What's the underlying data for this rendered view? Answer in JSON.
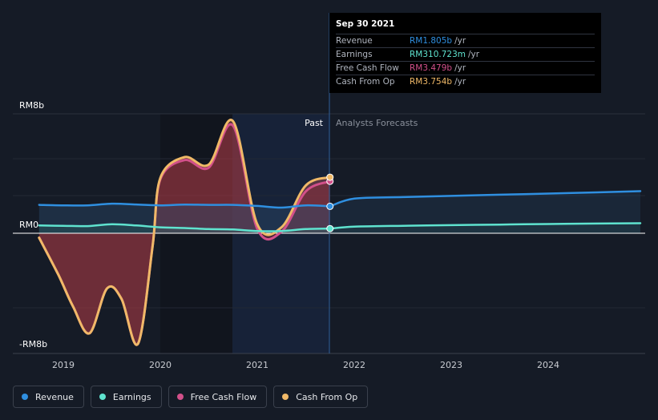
{
  "tooltip": {
    "date": "Sep 30 2021",
    "rows": [
      {
        "label": "Revenue",
        "value": "RM1.805b",
        "unit": "/yr",
        "color": "#2f8fe0"
      },
      {
        "label": "Earnings",
        "value": "RM310.723m",
        "unit": "/yr",
        "color": "#5fe3cf"
      },
      {
        "label": "Free Cash Flow",
        "value": "RM3.479b",
        "unit": "/yr",
        "color": "#d2508a"
      },
      {
        "label": "Cash From Op",
        "value": "RM3.754b",
        "unit": "/yr",
        "color": "#f0b968"
      }
    ]
  },
  "legend": [
    {
      "label": "Revenue",
      "color": "#2f8fe0"
    },
    {
      "label": "Earnings",
      "color": "#5fe3cf"
    },
    {
      "label": "Free Cash Flow",
      "color": "#d2508a"
    },
    {
      "label": "Cash From Op",
      "color": "#f0b968"
    }
  ],
  "chart_data": {
    "type": "line",
    "ylim": [
      -8,
      8
    ],
    "xlim": [
      2018.75,
      2024.95
    ],
    "y_tick_labels": [
      {
        "value": 8,
        "label": "RM8b"
      },
      {
        "value": 0,
        "label": "RM0"
      },
      {
        "value": -8,
        "label": "-RM8b"
      }
    ],
    "x_tick_labels": [
      {
        "value": 2019,
        "label": "2019"
      },
      {
        "value": 2020,
        "label": "2020"
      },
      {
        "value": 2021,
        "label": "2021"
      },
      {
        "value": 2022,
        "label": "2022"
      },
      {
        "value": 2023,
        "label": "2023"
      },
      {
        "value": 2024,
        "label": "2024"
      }
    ],
    "past_label": "Past",
    "forecast_label": "Analysts Forecasts",
    "divider_x": 2021.75,
    "series": [
      {
        "name": "Revenue",
        "color": "#2f8fe0",
        "points": [
          [
            2018.75,
            1.9
          ],
          [
            2019.0,
            1.87
          ],
          [
            2019.25,
            1.87
          ],
          [
            2019.5,
            1.98
          ],
          [
            2019.75,
            1.93
          ],
          [
            2020.0,
            1.87
          ],
          [
            2020.25,
            1.92
          ],
          [
            2020.5,
            1.9
          ],
          [
            2020.75,
            1.9
          ],
          [
            2021.0,
            1.83
          ],
          [
            2021.25,
            1.72
          ],
          [
            2021.5,
            1.87
          ],
          [
            2021.75,
            1.805
          ]
        ],
        "forecast": [
          [
            2021.75,
            1.805
          ],
          [
            2022.0,
            2.32
          ],
          [
            2022.5,
            2.42
          ],
          [
            2023.0,
            2.5
          ],
          [
            2023.5,
            2.58
          ],
          [
            2024.0,
            2.66
          ],
          [
            2024.5,
            2.74
          ],
          [
            2024.95,
            2.82
          ]
        ]
      },
      {
        "name": "Earnings",
        "color": "#5fe3cf",
        "points": [
          [
            2018.75,
            0.52
          ],
          [
            2019.0,
            0.5
          ],
          [
            2019.25,
            0.48
          ],
          [
            2019.5,
            0.6
          ],
          [
            2019.75,
            0.52
          ],
          [
            2020.0,
            0.4
          ],
          [
            2020.25,
            0.35
          ],
          [
            2020.5,
            0.28
          ],
          [
            2020.75,
            0.25
          ],
          [
            2021.0,
            0.15
          ],
          [
            2021.25,
            0.15
          ],
          [
            2021.5,
            0.28
          ],
          [
            2021.75,
            0.3107
          ]
        ],
        "forecast": [
          [
            2021.75,
            0.3107
          ],
          [
            2022.0,
            0.44
          ],
          [
            2022.5,
            0.5
          ],
          [
            2023.0,
            0.54
          ],
          [
            2023.5,
            0.58
          ],
          [
            2024.0,
            0.62
          ],
          [
            2024.5,
            0.65
          ],
          [
            2024.95,
            0.67
          ]
        ]
      },
      {
        "name": "Free Cash Flow",
        "color": "#d2508a",
        "points": [
          [
            2018.75,
            -0.3
          ],
          [
            2018.95,
            -2.8
          ],
          [
            2019.1,
            -4.9
          ],
          [
            2019.27,
            -6.7
          ],
          [
            2019.45,
            -3.7
          ],
          [
            2019.6,
            -4.4
          ],
          [
            2019.77,
            -7.4
          ],
          [
            2019.92,
            -0.9
          ],
          [
            2020.0,
            3.6
          ],
          [
            2020.25,
            4.9
          ],
          [
            2020.5,
            4.4
          ],
          [
            2020.75,
            7.2
          ],
          [
            2021.0,
            0.3
          ],
          [
            2021.25,
            0.1
          ],
          [
            2021.5,
            2.8
          ],
          [
            2021.75,
            3.479
          ]
        ]
      },
      {
        "name": "Cash From Op",
        "color": "#f0b968",
        "points": [
          [
            2018.75,
            -0.3
          ],
          [
            2018.95,
            -2.8
          ],
          [
            2019.1,
            -4.9
          ],
          [
            2019.27,
            -6.7
          ],
          [
            2019.45,
            -3.7
          ],
          [
            2019.6,
            -4.4
          ],
          [
            2019.77,
            -7.4
          ],
          [
            2019.92,
            -0.9
          ],
          [
            2020.0,
            3.7
          ],
          [
            2020.25,
            5.1
          ],
          [
            2020.5,
            4.6
          ],
          [
            2020.75,
            7.5
          ],
          [
            2021.0,
            0.6
          ],
          [
            2021.25,
            0.4
          ],
          [
            2021.5,
            3.2
          ],
          [
            2021.75,
            3.754
          ]
        ]
      }
    ]
  }
}
